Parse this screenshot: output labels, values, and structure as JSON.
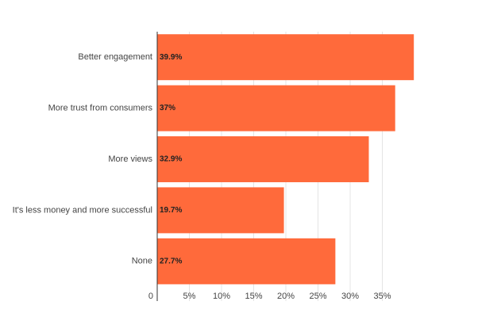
{
  "chart_data": {
    "type": "bar",
    "orientation": "horizontal",
    "categories": [
      "Better engagement",
      "More trust from consumers",
      "More views",
      "It's less money and more successful",
      "None"
    ],
    "values": [
      39.9,
      37,
      32.9,
      19.7,
      27.7
    ],
    "value_labels": [
      "39.9%",
      "37%",
      "32.9%",
      "19.7%",
      "27.7%"
    ],
    "color": "#ff6a3b",
    "xlim": [
      0,
      40
    ],
    "xticks": [
      0,
      {
        "value": 5,
        "label": "5%"
      },
      {
        "value": 10,
        "label": "10%"
      },
      {
        "value": 15,
        "label": "15%"
      },
      {
        "value": 20,
        "label": "20%"
      },
      {
        "value": 25,
        "label": "25%"
      },
      {
        "value": 30,
        "label": "30%"
      },
      {
        "value": 35,
        "label": "35%"
      }
    ],
    "grid": true
  }
}
